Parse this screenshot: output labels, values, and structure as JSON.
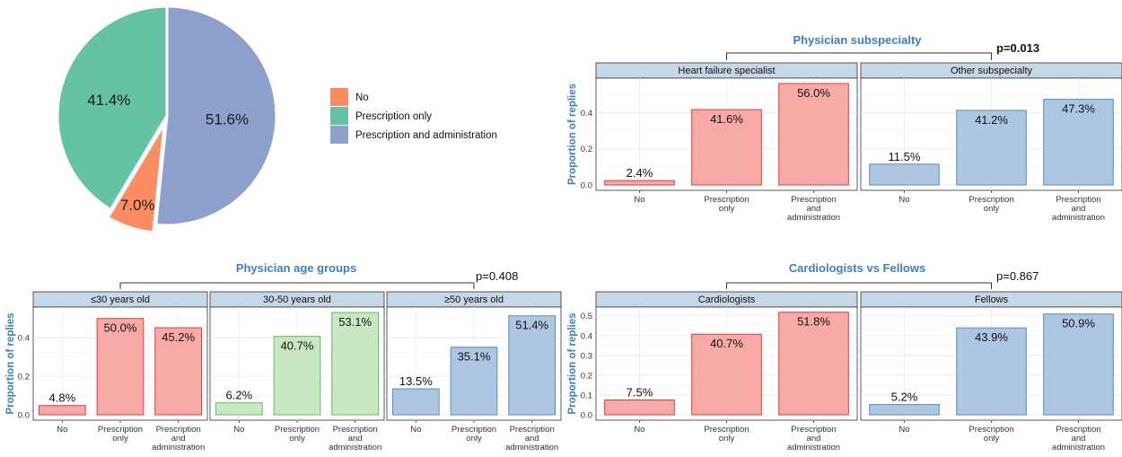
{
  "colors": {
    "no": "#fc8d62",
    "prescription_only": "#66c2a5",
    "prescription_and_admin": "#8da0cb",
    "red_fill": "#f8aaa6",
    "red_stroke": "#e0393e",
    "green_fill": "#c8e8c2",
    "green_stroke": "#6ab86a",
    "blue_fill": "#adc6e2",
    "blue_stroke": "#5a8fc0",
    "strip_bg": "#c6d7e6",
    "title_blue": "#3d7fc0"
  },
  "chart_data": [
    {
      "type": "pie",
      "categories": [
        "No",
        "Prescription only",
        "Prescription and administration"
      ],
      "values": [
        7.0,
        41.4,
        51.6
      ],
      "labels": [
        "7.0%",
        "41.4%",
        "51.6%"
      ],
      "legend": [
        "No",
        "Prescription only",
        "Prescription and administration"
      ],
      "legend_position": "right"
    },
    {
      "type": "bar",
      "title": "Physician subspecialty",
      "ylabel": "Proportion of replies",
      "pvalue": "p=0.013",
      "yticks": [
        "0.0",
        "0.2",
        "0.4"
      ],
      "ylim": [
        0,
        0.58
      ],
      "categories": [
        "No",
        "Prescription only",
        "Prescription and administration"
      ],
      "facets": [
        {
          "name": "Heart failure specialist",
          "color": "red",
          "values": [
            0.024,
            0.416,
            0.56
          ],
          "labels": [
            "2.4%",
            "41.6%",
            "56.0%"
          ]
        },
        {
          "name": "Other subspecialty",
          "color": "blue",
          "values": [
            0.115,
            0.412,
            0.473
          ],
          "labels": [
            "11.5%",
            "41.2%",
            "47.3%"
          ]
        }
      ]
    },
    {
      "type": "bar",
      "title": "Physician age groups",
      "ylabel": "Proportion of replies",
      "pvalue": "p=0.408",
      "yticks": [
        "0.0",
        "0.2",
        "0.4"
      ],
      "ylim": [
        0,
        0.55
      ],
      "categories": [
        "No",
        "Prescription only",
        "Prescription and administration"
      ],
      "facets": [
        {
          "name": "≤30 years old",
          "color": "red",
          "values": [
            0.048,
            0.5,
            0.452
          ],
          "labels": [
            "4.8%",
            "50.0%",
            "45.2%"
          ]
        },
        {
          "name": "30-50 years old",
          "color": "green",
          "values": [
            0.062,
            0.407,
            0.531
          ],
          "labels": [
            "6.2%",
            "40.7%",
            "53.1%"
          ]
        },
        {
          "name": "≥50 years old",
          "color": "blue",
          "values": [
            0.135,
            0.351,
            0.514
          ],
          "labels": [
            "13.5%",
            "35.1%",
            "51.4%"
          ]
        }
      ]
    },
    {
      "type": "bar",
      "title": "Cardiologists vs Fellows",
      "ylabel": "Proportion of replies",
      "pvalue": "p=0.867",
      "yticks": [
        "0.0",
        "0.1",
        "0.2",
        "0.3",
        "0.4",
        "0.5"
      ],
      "ylim": [
        0,
        0.535
      ],
      "categories": [
        "No",
        "Prescription only",
        "Prescription and administration"
      ],
      "facets": [
        {
          "name": "Cardiologists",
          "color": "red",
          "values": [
            0.075,
            0.407,
            0.518
          ],
          "labels": [
            "7.5%",
            "40.7%",
            "51.8%"
          ]
        },
        {
          "name": "Fellows",
          "color": "blue",
          "values": [
            0.052,
            0.439,
            0.509
          ],
          "labels": [
            "5.2%",
            "43.9%",
            "50.9%"
          ]
        }
      ]
    }
  ]
}
